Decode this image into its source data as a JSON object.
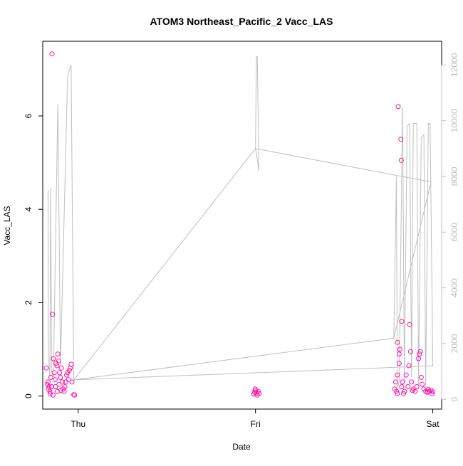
{
  "chart_data": {
    "type": "scatter",
    "title": "ATOM3 Northeast_Pacific_2 Vacc_LAS",
    "xlabel": "Date",
    "ylabel": "Vacc_LAS",
    "x_ticks": [
      "Thu",
      "Fri",
      "Sat"
    ],
    "y_ticks": [
      "0",
      "2",
      "4",
      "6"
    ],
    "y2_ticks": [
      "0",
      "2000",
      "4000",
      "6000",
      "8000",
      "10000",
      "12000"
    ],
    "xlim": [
      -0.2,
      2.05
    ],
    "ylim": [
      -0.28,
      7.6
    ],
    "y2lim": [
      -350,
      12850
    ],
    "grid": false,
    "colors": {
      "points": "#ff1493",
      "points_alt": "#ff00ff",
      "altitude_line": "#bfbfbf",
      "axes": "#000000",
      "right_axis": "#bfbfbf"
    },
    "series": [
      {
        "role": "scatter",
        "points": [
          [
            -0.18,
            0.6
          ],
          [
            -0.17,
            0.3
          ],
          [
            -0.165,
            0.2
          ],
          [
            -0.16,
            0.1
          ],
          [
            -0.155,
            0.4
          ],
          [
            -0.15,
            0.2
          ],
          [
            -0.148,
            7.33
          ],
          [
            -0.145,
            1.75
          ],
          [
            -0.14,
            0.8
          ],
          [
            -0.135,
            0.5
          ],
          [
            -0.13,
            0.35
          ],
          [
            -0.125,
            0.7
          ],
          [
            -0.12,
            0.65
          ],
          [
            -0.115,
            0.9
          ],
          [
            -0.11,
            0.75
          ],
          [
            -0.105,
            0.5
          ],
          [
            -0.1,
            0.4
          ],
          [
            -0.095,
            0.6
          ],
          [
            -0.09,
            0.3
          ],
          [
            -0.085,
            0.15
          ],
          [
            -0.08,
            0.1
          ],
          [
            -0.075,
            0.2
          ],
          [
            -0.07,
            0.3
          ],
          [
            -0.065,
            0.45
          ],
          [
            -0.06,
            0.5
          ],
          [
            -0.055,
            0.35
          ],
          [
            -0.05,
            0.55
          ],
          [
            -0.045,
            0.6
          ],
          [
            -0.04,
            0.68
          ],
          [
            -0.035,
            0.3
          ],
          [
            -0.025,
            0.03
          ],
          [
            -0.02,
            0.02
          ],
          [
            -0.175,
            0.25
          ],
          [
            -0.168,
            0.15
          ],
          [
            -0.158,
            0.05
          ],
          [
            -0.142,
            0.02
          ],
          [
            -0.128,
            0.2
          ],
          [
            -0.118,
            0.1
          ],
          [
            -0.108,
            0.25
          ],
          [
            -0.098,
            0.12
          ],
          [
            0.99,
            0.04
          ],
          [
            0.995,
            0.08
          ],
          [
            1.0,
            0.12
          ],
          [
            1.005,
            0.06
          ],
          [
            1.01,
            0.02
          ],
          [
            1.015,
            0.1
          ],
          [
            1.02,
            0.05
          ],
          [
            0.998,
            0.15
          ],
          [
            1.8,
            1.15
          ],
          [
            1.805,
            6.2
          ],
          [
            1.81,
            0.9
          ],
          [
            1.815,
            1.0
          ],
          [
            1.82,
            5.5
          ],
          [
            1.822,
            5.05
          ],
          [
            1.825,
            1.6
          ],
          [
            1.83,
            0.3
          ],
          [
            1.79,
            0.3
          ],
          [
            1.795,
            0.1
          ],
          [
            1.8,
            0.45
          ],
          [
            1.785,
            0.15
          ],
          [
            1.8,
            0.05
          ],
          [
            1.81,
            0.7
          ],
          [
            1.825,
            0.2
          ],
          [
            1.835,
            0.05
          ],
          [
            1.84,
            0.1
          ],
          [
            1.85,
            0.45
          ],
          [
            1.86,
            0.2
          ],
          [
            1.865,
            0.65
          ],
          [
            1.87,
            1.53
          ],
          [
            1.875,
            0.95
          ],
          [
            1.88,
            0.3
          ],
          [
            1.885,
            0.12
          ],
          [
            1.89,
            0.15
          ],
          [
            1.9,
            0.1
          ],
          [
            1.91,
            0.2
          ],
          [
            1.92,
            0.8
          ],
          [
            1.925,
            0.9
          ],
          [
            1.93,
            0.95
          ],
          [
            1.935,
            0.4
          ],
          [
            1.94,
            0.25
          ],
          [
            1.95,
            0.15
          ],
          [
            1.96,
            0.1
          ],
          [
            1.97,
            0.08
          ],
          [
            1.98,
            0.1
          ],
          [
            1.99,
            0.12
          ],
          [
            2.0,
            0.09
          ],
          [
            1.995,
            0.05
          ],
          [
            1.975,
            0.14
          ]
        ]
      },
      {
        "role": "altitude",
        "points": [
          [
            -0.17,
            7500
          ],
          [
            -0.168,
            1500
          ],
          [
            -0.16,
            800
          ],
          [
            -0.155,
            7600
          ],
          [
            -0.15,
            1000
          ],
          [
            -0.14,
            800
          ],
          [
            -0.115,
            10600
          ],
          [
            -0.1,
            1200
          ],
          [
            -0.06,
            11500
          ],
          [
            -0.055,
            11700
          ],
          [
            -0.04,
            12000
          ],
          [
            -0.025,
            700
          ],
          [
            1.0,
            9000
          ],
          [
            1.005,
            12300
          ],
          [
            1.01,
            12300
          ],
          [
            1.02,
            8200
          ],
          [
            1.0,
            9000
          ],
          [
            1.99,
            7800
          ],
          [
            1.78,
            2200
          ],
          [
            1.795,
            8000
          ],
          [
            1.8,
            400
          ],
          [
            1.81,
            600
          ],
          [
            1.83,
            10500
          ],
          [
            1.84,
            600
          ],
          [
            1.855,
            9800
          ],
          [
            1.87,
            9900
          ],
          [
            1.88,
            800
          ],
          [
            1.89,
            9900
          ],
          [
            1.91,
            9900
          ],
          [
            1.92,
            500
          ],
          [
            1.935,
            9400
          ],
          [
            1.95,
            9500
          ],
          [
            1.96,
            500
          ],
          [
            1.975,
            9900
          ],
          [
            1.985,
            9900
          ],
          [
            2.0,
            1200
          ],
          [
            -0.025,
            700
          ],
          [
            1.79,
            2200
          ]
        ]
      }
    ]
  }
}
